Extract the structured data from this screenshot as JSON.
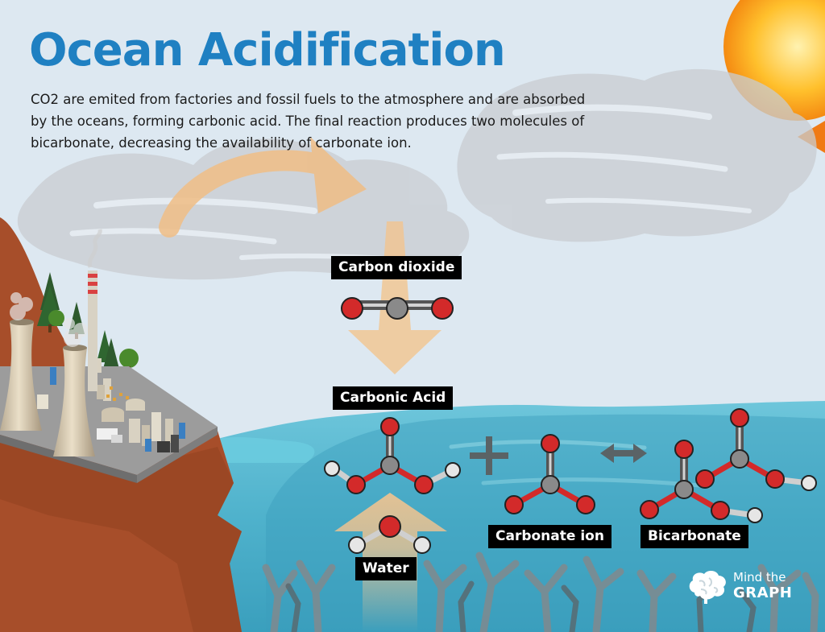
{
  "title": "Ocean Acidification",
  "description": "CO2 are emited from factories and fossil fuels to the atmosphere and are absorbed by the oceans, forming carbonic acid. The final reaction produces two molecules of bicarbonate, decreasing the availability of carbonate ion.",
  "labels": {
    "carbon_dioxide": "Carbon dioxide",
    "carbonic_acid": "Carbonic Acid",
    "water": "Water",
    "carbonate_ion": "Carbonate ion",
    "bicarbonate": "Bicarbonate"
  },
  "logo": {
    "line1": "Mind the",
    "line2": "GRAPH"
  },
  "colors": {
    "title": "#1f80c2",
    "sky": "#dbe7f1",
    "ocean": "#5ab8cf",
    "cliff": "#a44d28",
    "sun": "#f7a21d",
    "oxygen_atom": "#d32a2a",
    "carbon_atom": "#8a8a8a",
    "hydrogen_atom": "#e6e6e6",
    "arrow": "#f3c48f"
  }
}
